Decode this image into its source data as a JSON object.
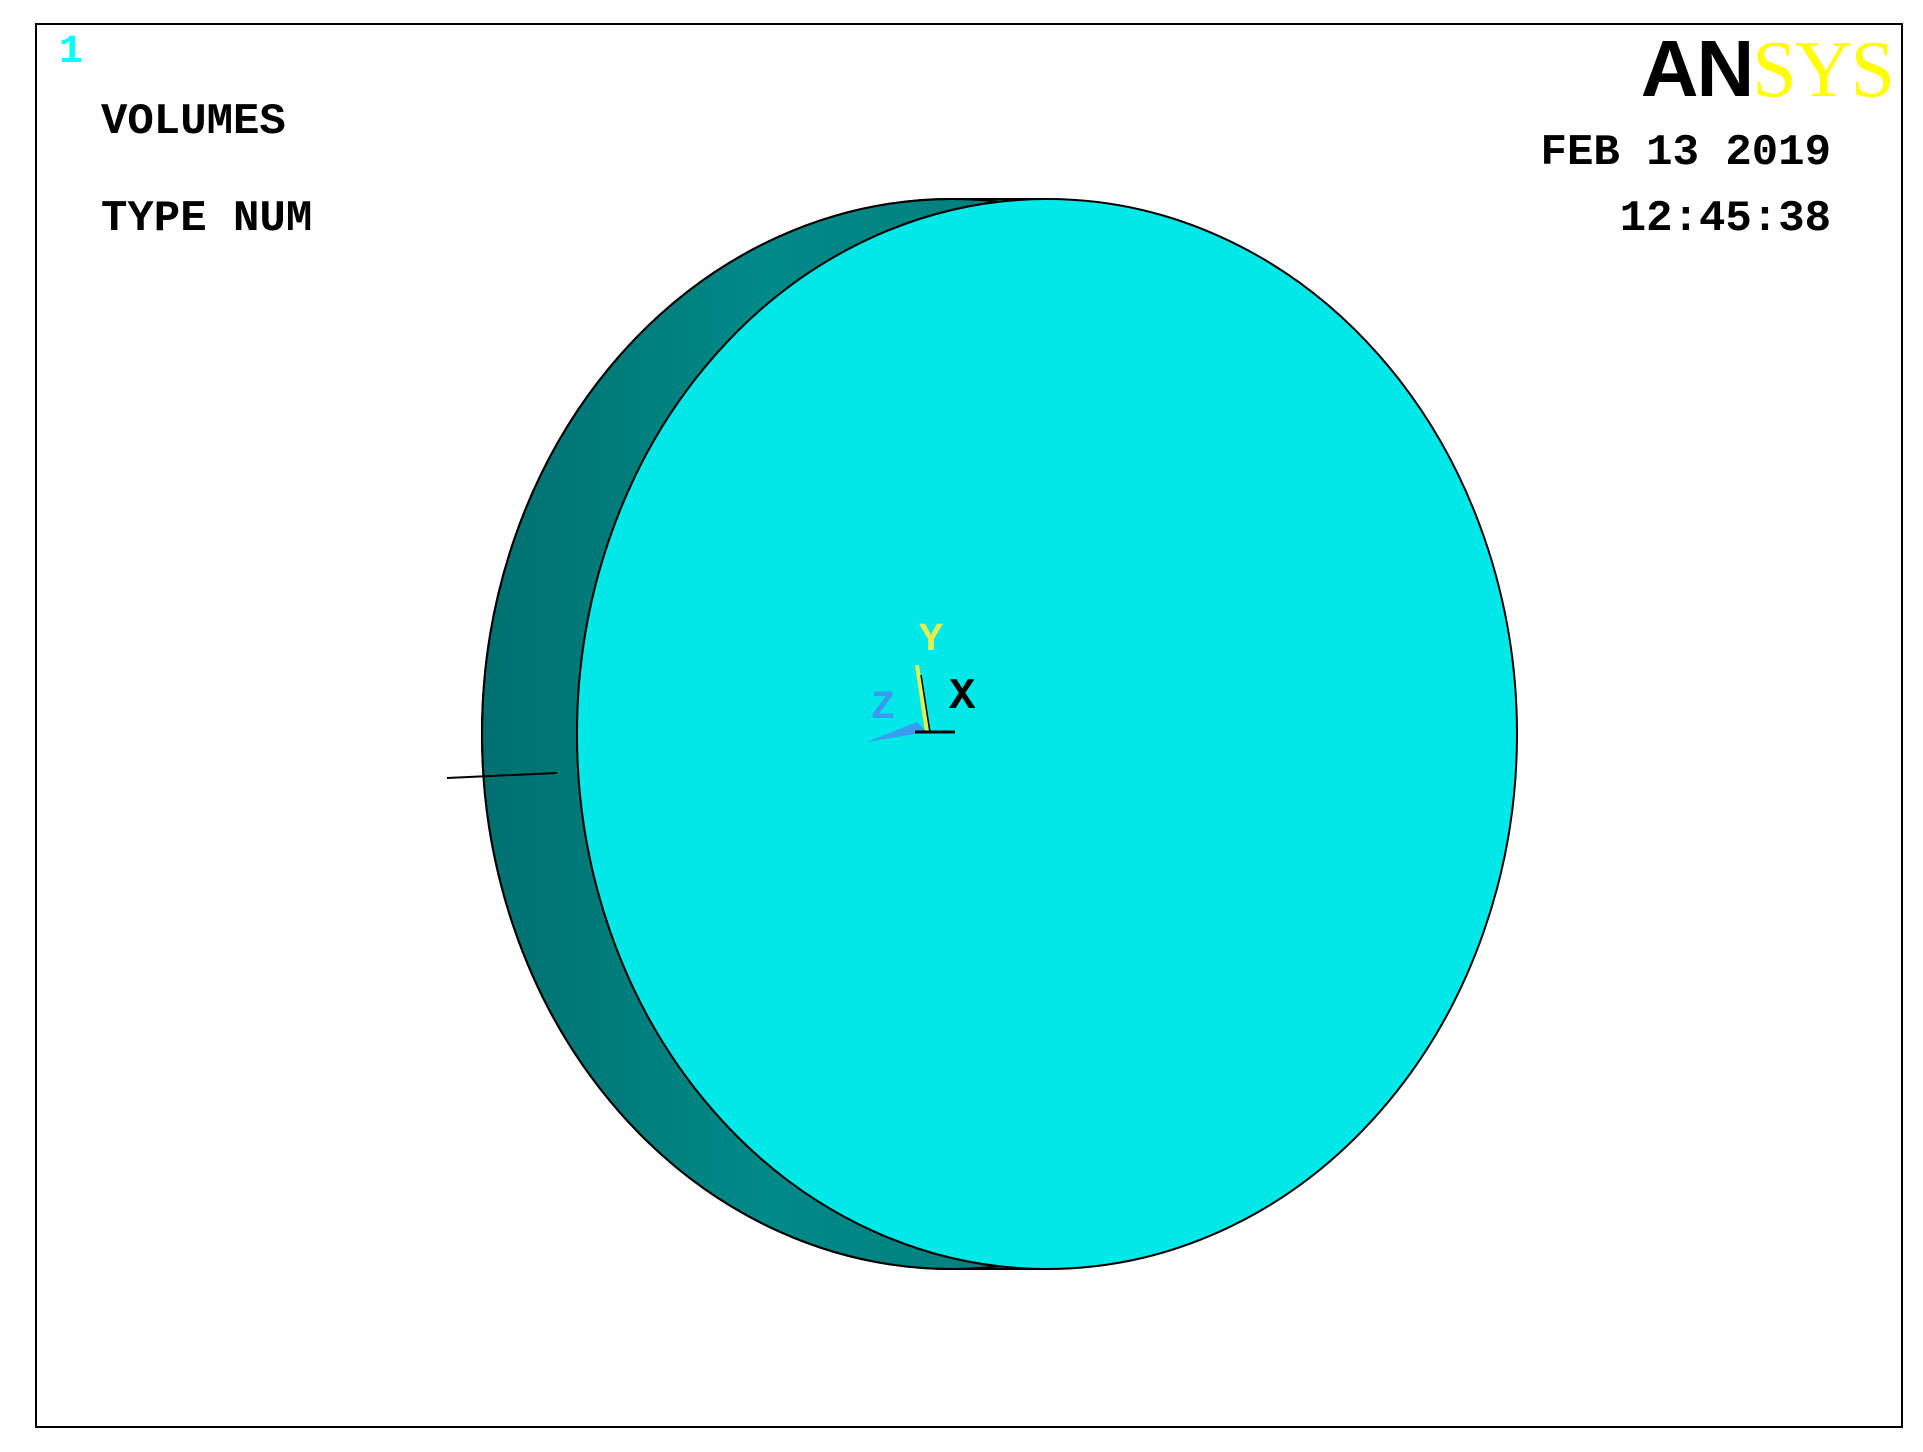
{
  "window": {
    "number": "1"
  },
  "plot": {
    "type": "VOLUMES",
    "numbering": "TYPE NUM",
    "date": "FEB 13 2019",
    "time": "12:45:38"
  },
  "logo": {
    "part1": "AN",
    "part2": "SYS"
  },
  "triad": {
    "y_label": "Y",
    "z_label": "Z",
    "x_label": "X"
  },
  "colors": {
    "window_number": "#00ffff",
    "face": "#00e8e8",
    "side": "#008080",
    "logo_accent": "#ffff00",
    "triad_y": "#e5f050",
    "triad_z": "#3a9cf0",
    "triad_x": "#000000"
  }
}
